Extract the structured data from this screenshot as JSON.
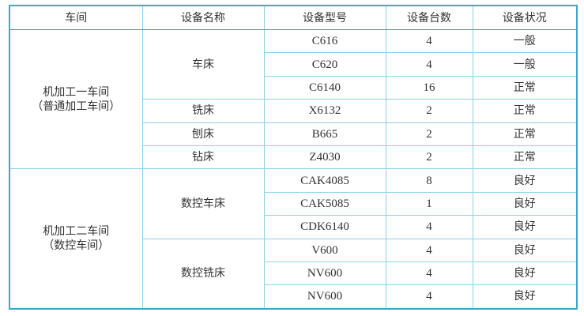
{
  "header": [
    "车间",
    "设备名称",
    "设备型号",
    "设备台数",
    "设备状况"
  ],
  "workshops": [
    {
      "name_line1": "机加工一车间",
      "name_line2": "（普通加工车间）",
      "groups": [
        {
          "name": "车床",
          "rows": [
            [
              "C616",
              "4",
              "一般"
            ],
            [
              "C620",
              "4",
              "一般"
            ],
            [
              "C6140",
              "16",
              "正常"
            ]
          ]
        },
        {
          "name": "铣床",
          "rows": [
            [
              "X6132",
              "2",
              "正常"
            ]
          ]
        },
        {
          "name": "刨床",
          "rows": [
            [
              "B665",
              "2",
              "正常"
            ]
          ]
        },
        {
          "name": "钻床",
          "rows": [
            [
              "Z4030",
              "2",
              "正常"
            ]
          ]
        }
      ]
    },
    {
      "name_line1": "机加工二车间",
      "name_line2": "（数控车间）",
      "groups": [
        {
          "name": "数控车床",
          "rows": [
            [
              "CAK4085",
              "8",
              "良好"
            ],
            [
              "CAK5085",
              "1",
              "良好"
            ],
            [
              "CDK6140",
              "4",
              "良好"
            ]
          ]
        },
        {
          "name": "数控铣床",
          "rows": [
            [
              "V600",
              "4",
              "良好"
            ],
            [
              "NV600",
              "4",
              "良好"
            ],
            [
              "NV600",
              "4",
              "良好"
            ]
          ]
        }
      ]
    }
  ],
  "colors": {
    "outer_border": "#3aa6d2",
    "inner_border": "#8fd0ea"
  }
}
